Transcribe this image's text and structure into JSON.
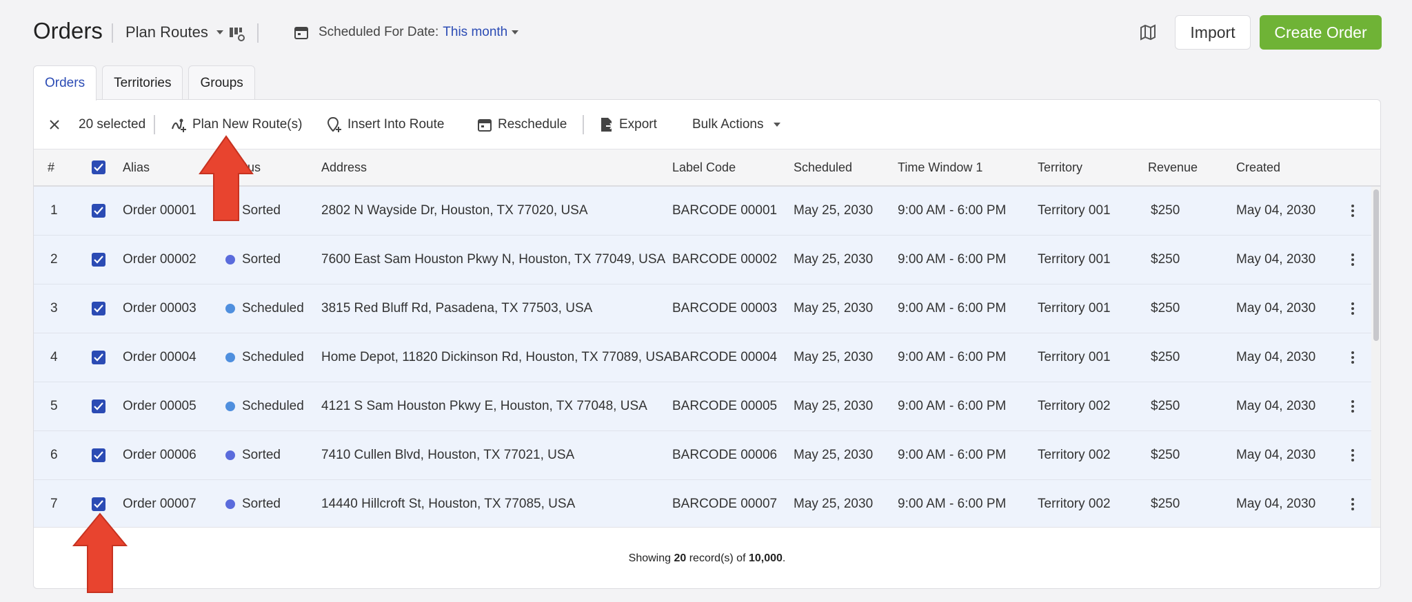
{
  "header": {
    "title": "Orders",
    "plan_routes": "Plan Routes",
    "scheduled_label": "Scheduled For Date:",
    "scheduled_value": "This month",
    "import_label": "Import",
    "create_label": "Create Order"
  },
  "tabs": [
    {
      "label": "Orders",
      "active": true
    },
    {
      "label": "Territories",
      "active": false
    },
    {
      "label": "Groups",
      "active": false
    }
  ],
  "toolbar": {
    "selected": "20 selected",
    "plan_new": "Plan New Route(s)",
    "insert": "Insert Into Route",
    "reschedule": "Reschedule",
    "export": "Export",
    "bulk": "Bulk Actions"
  },
  "columns": {
    "num": "#",
    "alias": "Alias",
    "status": "Status",
    "address": "Address",
    "label_code": "Label Code",
    "scheduled": "Scheduled",
    "time_window": "Time Window 1",
    "territory": "Territory",
    "revenue": "Revenue",
    "created": "Created"
  },
  "status_colors": {
    "Sorted": "#5a6bdc",
    "Scheduled": "#4f8fde"
  },
  "rows": [
    {
      "num": "1",
      "alias": "Order 00001",
      "status": "Sorted",
      "address": "2802 N Wayside Dr, Houston, TX 77020, USA",
      "label_code": "BARCODE 00001",
      "scheduled": "May 25, 2030",
      "time_window": "9:00 AM - 6:00 PM",
      "territory": "Territory 001",
      "revenue": "$250",
      "created": "May 04, 2030"
    },
    {
      "num": "2",
      "alias": "Order 00002",
      "status": "Sorted",
      "address": "7600 East Sam Houston Pkwy N, Houston, TX 77049, USA",
      "label_code": "BARCODE 00002",
      "scheduled": "May 25, 2030",
      "time_window": "9:00 AM - 6:00 PM",
      "territory": "Territory 001",
      "revenue": "$250",
      "created": "May 04, 2030"
    },
    {
      "num": "3",
      "alias": "Order 00003",
      "status": "Scheduled",
      "address": "3815 Red Bluff Rd, Pasadena, TX 77503, USA",
      "label_code": "BARCODE 00003",
      "scheduled": "May 25, 2030",
      "time_window": "9:00 AM - 6:00 PM",
      "territory": "Territory 001",
      "revenue": "$250",
      "created": "May 04, 2030"
    },
    {
      "num": "4",
      "alias": "Order 00004",
      "status": "Scheduled",
      "address": "Home Depot, 11820 Dickinson Rd, Houston, TX 77089, USA",
      "label_code": "BARCODE 00004",
      "scheduled": "May 25, 2030",
      "time_window": "9:00 AM - 6:00 PM",
      "territory": "Territory 001",
      "revenue": "$250",
      "created": "May 04, 2030"
    },
    {
      "num": "5",
      "alias": "Order 00005",
      "status": "Scheduled",
      "address": "4121 S Sam Houston Pkwy E, Houston, TX 77048, USA",
      "label_code": "BARCODE 00005",
      "scheduled": "May 25, 2030",
      "time_window": "9:00 AM - 6:00 PM",
      "territory": "Territory 002",
      "revenue": "$250",
      "created": "May 04, 2030"
    },
    {
      "num": "6",
      "alias": "Order 00006",
      "status": "Sorted",
      "address": "7410 Cullen Blvd, Houston, TX 77021, USA",
      "label_code": "BARCODE 00006",
      "scheduled": "May 25, 2030",
      "time_window": "9:00 AM - 6:00 PM",
      "territory": "Territory 002",
      "revenue": "$250",
      "created": "May 04, 2030"
    },
    {
      "num": "7",
      "alias": "Order 00007",
      "status": "Sorted",
      "address": "14440 Hillcroft St, Houston, TX 77085, USA",
      "label_code": "BARCODE 00007",
      "scheduled": "May 25, 2030",
      "time_window": "9:00 AM - 6:00 PM",
      "territory": "Territory 002",
      "revenue": "$250",
      "created": "May 04, 2030"
    }
  ],
  "footer": {
    "prefix": "Showing ",
    "count": "20",
    "middle": " record(s) of ",
    "total": "10,000",
    "suffix": "."
  }
}
